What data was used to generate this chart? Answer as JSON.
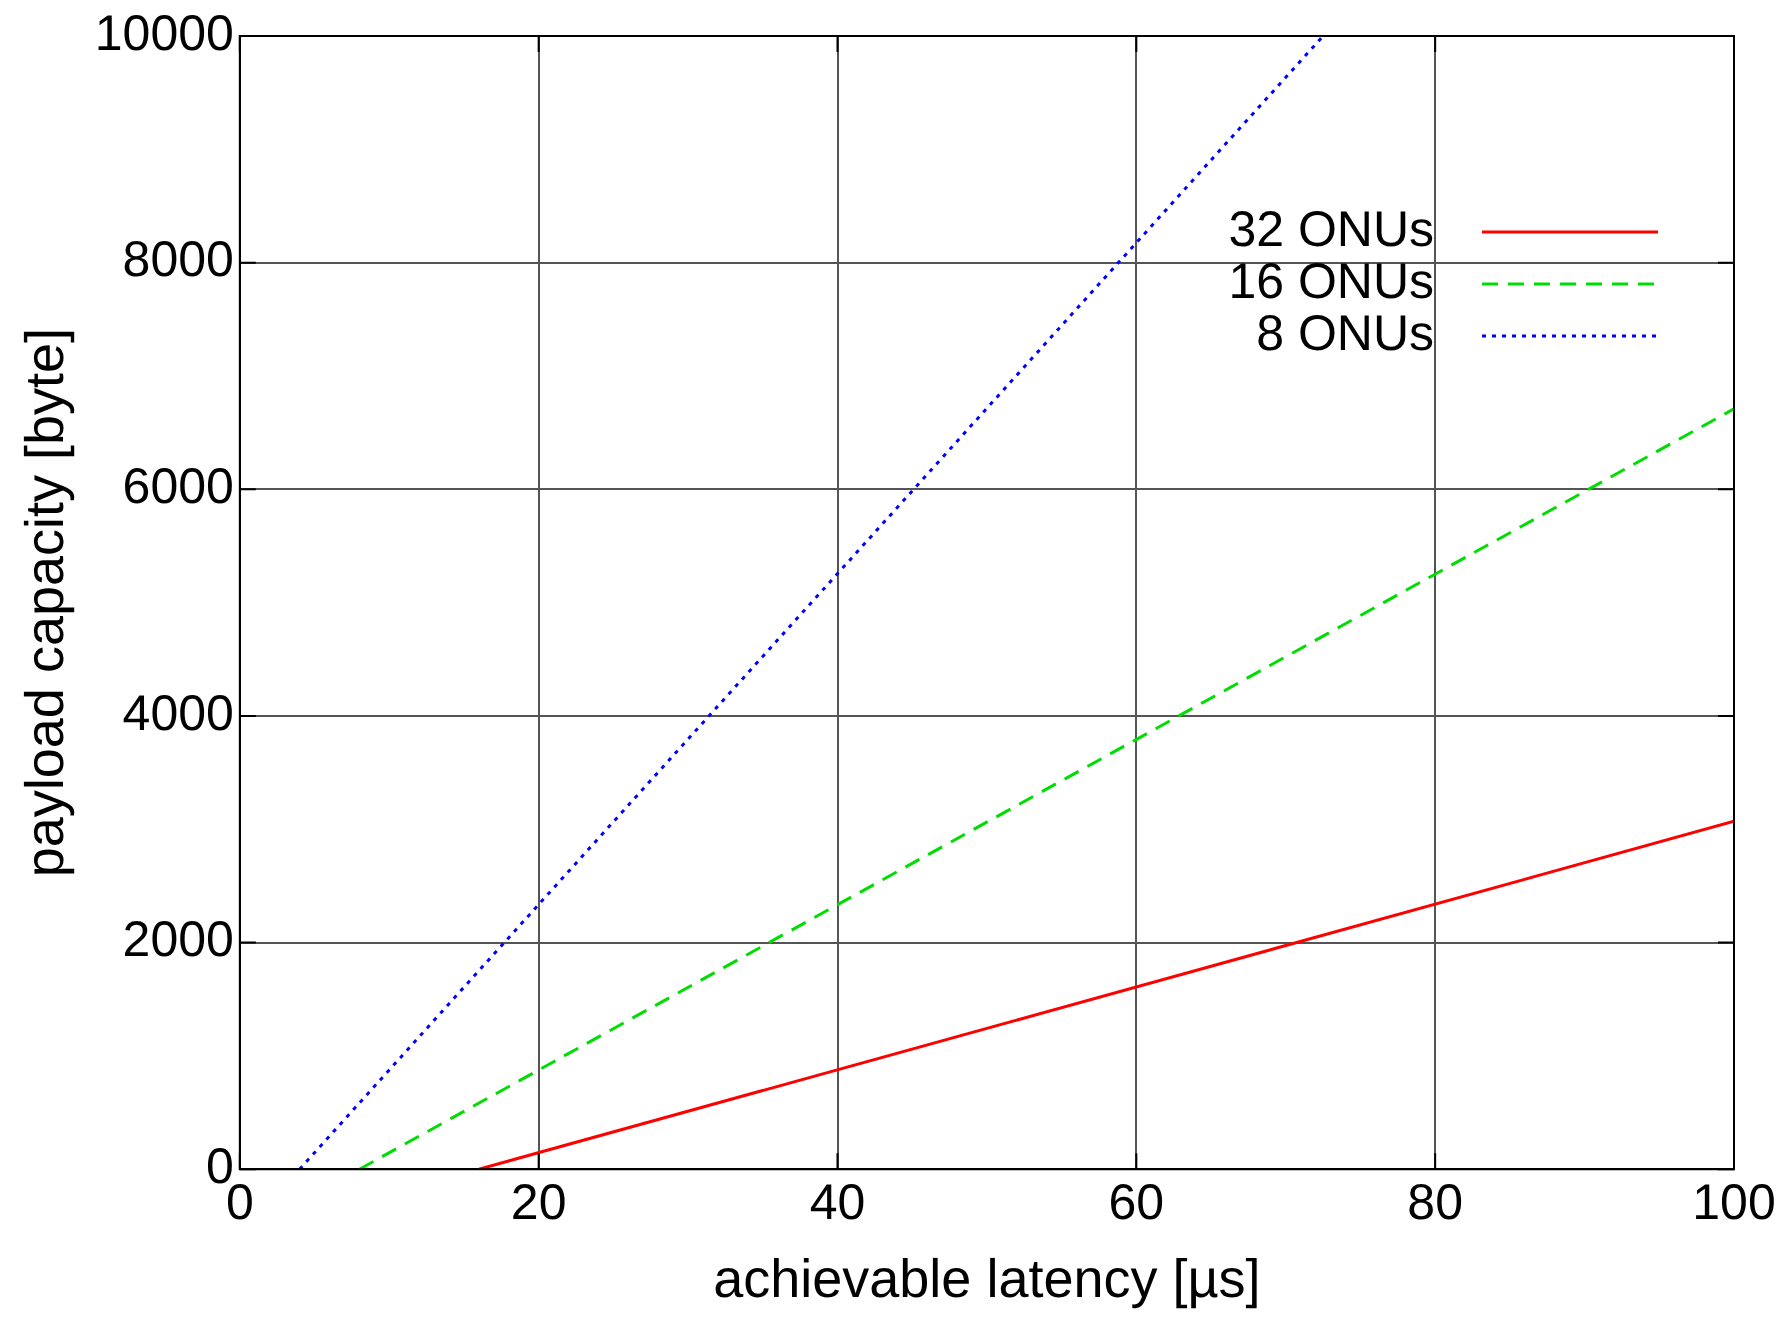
{
  "chart_data": {
    "type": "line",
    "xlabel": "achievable latency [µs]",
    "ylabel": "payload capacity [byte]",
    "xlim": [
      0,
      100
    ],
    "ylim": [
      0,
      10000
    ],
    "xticks": [
      0,
      20,
      40,
      60,
      80,
      100
    ],
    "yticks": [
      0,
      2000,
      4000,
      6000,
      8000,
      10000
    ],
    "grid": true,
    "legend": "top right",
    "marker": "none",
    "series": [
      {
        "name": "32 ONUs",
        "color": "#ff0000",
        "line_style": "solid",
        "x": [
          16,
          100
        ],
        "values": [
          0,
          3070
        ]
      },
      {
        "name": "16 ONUs",
        "color": "#00dd00",
        "line_style": "dashed",
        "x": [
          8,
          100
        ],
        "values": [
          0,
          6710
        ]
      },
      {
        "name": "8 ONUs",
        "color": "#0000ff",
        "line_style": "dotted",
        "x": [
          4,
          72.5
        ],
        "values": [
          0,
          10000
        ]
      }
    ]
  }
}
